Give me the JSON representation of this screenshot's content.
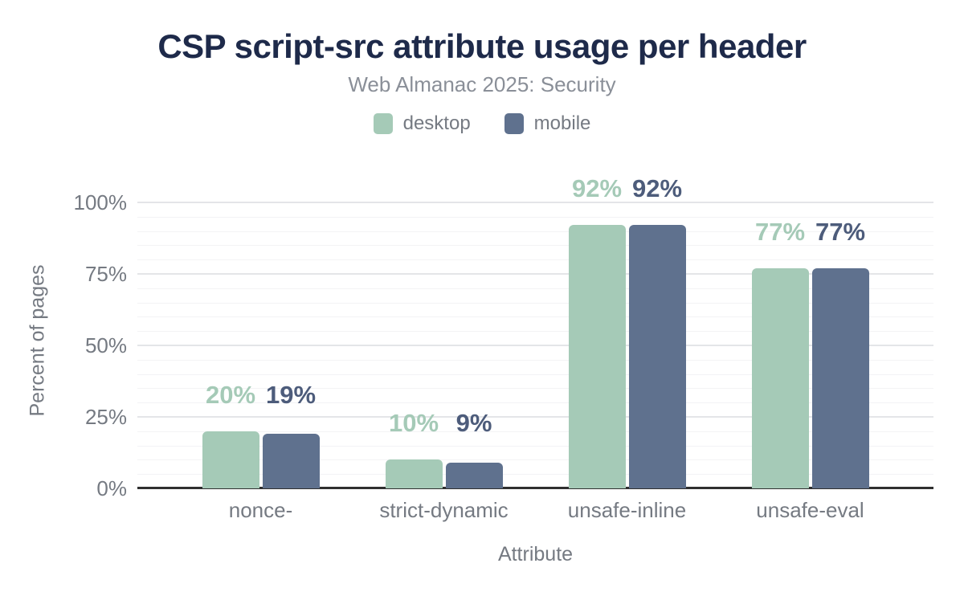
{
  "title": "CSP script-src attribute usage per header",
  "subtitle": "Web Almanac 2025: Security",
  "legend": {
    "items": [
      {
        "label": "desktop",
        "color": "#a5cab7"
      },
      {
        "label": "mobile",
        "color": "#5f718e"
      }
    ]
  },
  "colors": {
    "title": "#1e2a4a",
    "subtitle": "#8a8f98",
    "axis_text": "#757a82",
    "desktop_bar": "#a5cab7",
    "mobile_bar": "#5f718e",
    "desktop_value_label": "#a5cab7",
    "mobile_value_label": "#4d5c7b",
    "baseline": "#2f2f2f"
  },
  "chart_data": {
    "type": "bar",
    "title": "CSP script-src attribute usage per header",
    "subtitle": "Web Almanac 2025: Security",
    "categories": [
      "nonce-",
      "strict-dynamic",
      "unsafe-inline",
      "unsafe-eval"
    ],
    "series": [
      {
        "name": "desktop",
        "color": "#a5cab7",
        "label_color": "#a5cab7",
        "values": [
          20,
          10,
          92,
          77
        ],
        "labels": [
          "20%",
          "10%",
          "92%",
          "77%"
        ]
      },
      {
        "name": "mobile",
        "color": "#5f718e",
        "label_color": "#4d5c7b",
        "values": [
          19,
          9,
          92,
          77
        ],
        "labels": [
          "19%",
          "9%",
          "92%",
          "77%"
        ]
      }
    ],
    "xlabel": "Attribute",
    "ylabel": "Percent of pages",
    "ylim": [
      0,
      100
    ],
    "yticks": [
      {
        "pct": 0,
        "label": "0%"
      },
      {
        "pct": 25,
        "label": "25%"
      },
      {
        "pct": 50,
        "label": "50%"
      },
      {
        "pct": 75,
        "label": "75%"
      },
      {
        "pct": 100,
        "label": "100%"
      }
    ],
    "grid": {
      "minor_step": 5,
      "major_step": 25,
      "legend_position": "top"
    }
  }
}
